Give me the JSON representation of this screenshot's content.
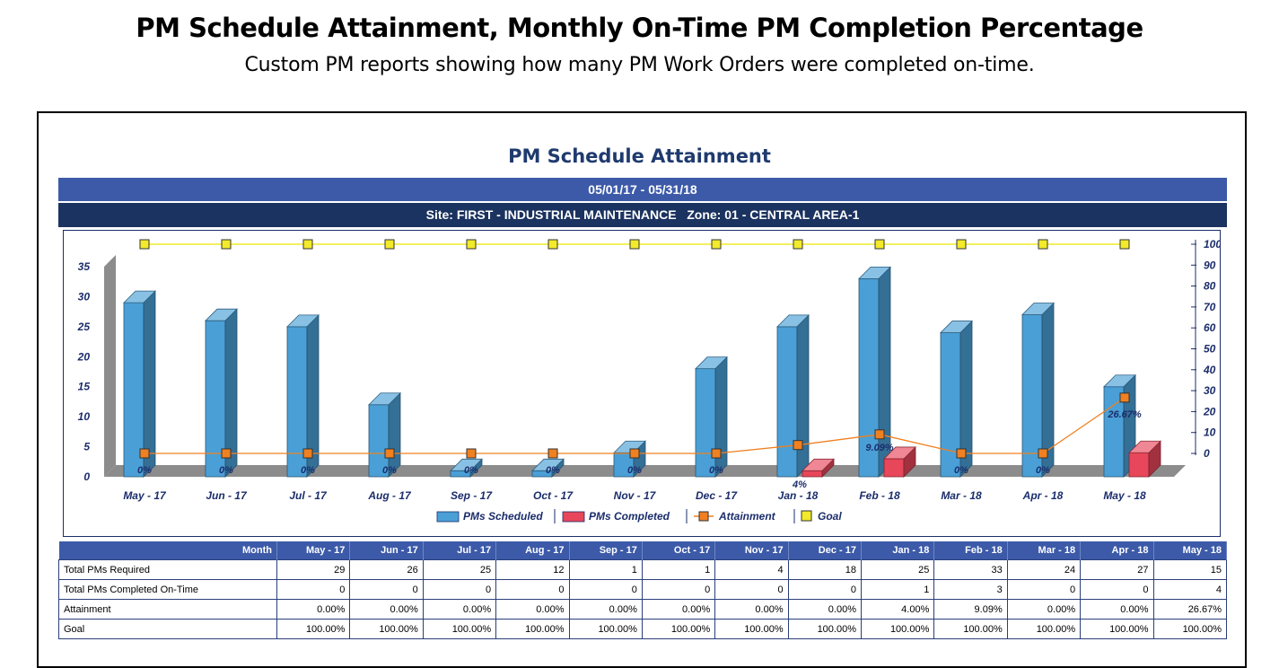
{
  "header": {
    "title": "PM Schedule Attainment, Monthly On-Time PM Completion Percentage",
    "subtitle": "Custom PM reports showing how many PM Work Orders were completed on-time."
  },
  "report": {
    "title": "PM Schedule Attainment",
    "date_range": "05/01/17 - 05/31/18",
    "site_zone": "Site: FIRST - INDUSTRIAL MAINTENANCE   Zone: 01 - CENTRAL AREA-1"
  },
  "colors": {
    "scheduled": "#4a9fd6",
    "completed": "#e8465a",
    "attainment": "#f08020",
    "goal": "#f2ea2a",
    "header_band": "#3c5aa8",
    "site_band": "#1b3360"
  },
  "chart_data": {
    "type": "bar",
    "categories": [
      "May - 17",
      "Jun - 17",
      "Jul - 17",
      "Aug - 17",
      "Sep - 17",
      "Oct - 17",
      "Nov - 17",
      "Dec - 17",
      "Jan - 18",
      "Feb - 18",
      "Mar - 18",
      "Apr - 18",
      "May - 18"
    ],
    "series": [
      {
        "name": "PMs Scheduled",
        "type": "bar",
        "axis": "left",
        "values": [
          29,
          26,
          25,
          12,
          1,
          1,
          4,
          18,
          25,
          33,
          24,
          27,
          15
        ]
      },
      {
        "name": "PMs Completed",
        "type": "bar",
        "axis": "left",
        "values": [
          0,
          0,
          0,
          0,
          0,
          0,
          0,
          0,
          1,
          3,
          0,
          0,
          4
        ]
      },
      {
        "name": "Attainment",
        "type": "line",
        "axis": "right",
        "values": [
          0,
          0,
          0,
          0,
          0,
          0,
          0,
          0,
          4,
          9.09,
          0,
          0,
          26.67
        ]
      },
      {
        "name": "Goal",
        "type": "line",
        "axis": "right",
        "values": [
          100,
          100,
          100,
          100,
          100,
          100,
          100,
          100,
          100,
          100,
          100,
          100,
          100
        ]
      }
    ],
    "data_labels": [
      "0%",
      "0%",
      "0%",
      "0%",
      "0%",
      "0%",
      "0%",
      "0%",
      "4%",
      "9.09%",
      "0%",
      "0%",
      "26.67%"
    ],
    "ylim_left": [
      0,
      35
    ],
    "yticks_left": [
      0,
      5,
      10,
      15,
      20,
      25,
      30,
      35
    ],
    "ylim_right": [
      0,
      100
    ],
    "yticks_right": [
      0,
      10,
      20,
      30,
      40,
      50,
      60,
      70,
      80,
      90,
      100
    ],
    "legend_position": "bottom"
  },
  "table": {
    "header_label": "Month",
    "rows": [
      {
        "label": "Total PMs Required",
        "values": [
          "29",
          "26",
          "25",
          "12",
          "1",
          "1",
          "4",
          "18",
          "25",
          "33",
          "24",
          "27",
          "15"
        ]
      },
      {
        "label": "Total PMs Completed On-Time",
        "values": [
          "0",
          "0",
          "0",
          "0",
          "0",
          "0",
          "0",
          "0",
          "1",
          "3",
          "0",
          "0",
          "4"
        ]
      },
      {
        "label": "Attainment",
        "values": [
          "0.00%",
          "0.00%",
          "0.00%",
          "0.00%",
          "0.00%",
          "0.00%",
          "0.00%",
          "0.00%",
          "4.00%",
          "9.09%",
          "0.00%",
          "0.00%",
          "26.67%"
        ]
      },
      {
        "label": "Goal",
        "values": [
          "100.00%",
          "100.00%",
          "100.00%",
          "100.00%",
          "100.00%",
          "100.00%",
          "100.00%",
          "100.00%",
          "100.00%",
          "100.00%",
          "100.00%",
          "100.00%",
          "100.00%"
        ]
      }
    ]
  }
}
